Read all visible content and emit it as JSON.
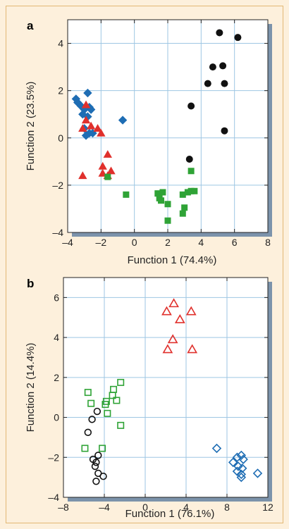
{
  "chart_data": [
    {
      "panel": "a",
      "type": "scatter",
      "xlabel": "Function 1 (74.4%)",
      "ylabel": "Function 2 (23.5%)",
      "xlim": [
        -4,
        8
      ],
      "ylim": [
        -4,
        5
      ],
      "xticks": [
        -4,
        -2,
        0,
        2,
        4,
        6,
        8
      ],
      "yticks": [
        -4,
        -2,
        0,
        2,
        4
      ],
      "xtick_labels": [
        "–4",
        "–2",
        "0",
        "2",
        "4",
        "6",
        "8"
      ],
      "ytick_labels": [
        "–4",
        "–2",
        "0",
        "2",
        "4"
      ],
      "grid": true,
      "series": [
        {
          "marker": "diamond",
          "filled": true,
          "color": "#1e6db4",
          "points": [
            [
              -3.5,
              1.65
            ],
            [
              -3.4,
              1.5
            ],
            [
              -2.8,
              1.9
            ],
            [
              -3.2,
              1.35
            ],
            [
              -3.0,
              1.2
            ],
            [
              -2.7,
              1.3
            ],
            [
              -2.6,
              1.2
            ],
            [
              -3.1,
              1.0
            ],
            [
              -2.8,
              0.9
            ],
            [
              -3.0,
              0.4
            ],
            [
              -2.7,
              0.2
            ],
            [
              -2.5,
              0.2
            ],
            [
              -2.9,
              0.1
            ],
            [
              -0.7,
              0.75
            ]
          ]
        },
        {
          "marker": "triangle",
          "filled": true,
          "color": "#e0302c",
          "points": [
            [
              -2.9,
              1.4
            ],
            [
              -2.9,
              0.75
            ],
            [
              -3.1,
              0.4
            ],
            [
              -2.6,
              0.5
            ],
            [
              -2.2,
              0.4
            ],
            [
              -2.0,
              0.2
            ],
            [
              -1.6,
              -0.7
            ],
            [
              -1.9,
              -1.2
            ],
            [
              -1.4,
              -1.4
            ],
            [
              -1.9,
              -1.5
            ],
            [
              -1.6,
              -1.6
            ],
            [
              -3.1,
              -1.6
            ]
          ]
        },
        {
          "marker": "square",
          "filled": true,
          "color": "#2fa336",
          "points": [
            [
              -1.6,
              -1.65
            ],
            [
              -0.5,
              -2.4
            ],
            [
              1.4,
              -2.35
            ],
            [
              1.7,
              -2.3
            ],
            [
              1.5,
              -2.55
            ],
            [
              1.6,
              -2.65
            ],
            [
              2.0,
              -2.8
            ],
            [
              2.9,
              -2.4
            ],
            [
              3.2,
              -2.3
            ],
            [
              3.4,
              -2.25
            ],
            [
              3.6,
              -2.25
            ],
            [
              3.4,
              -1.4
            ],
            [
              3.0,
              -2.95
            ],
            [
              2.9,
              -3.2
            ],
            [
              2.0,
              -3.5
            ]
          ]
        },
        {
          "marker": "circle",
          "filled": true,
          "color": "#111111",
          "points": [
            [
              5.1,
              4.45
            ],
            [
              6.2,
              4.25
            ],
            [
              4.7,
              3.0
            ],
            [
              5.3,
              3.05
            ],
            [
              4.4,
              2.3
            ],
            [
              5.4,
              2.3
            ],
            [
              3.4,
              1.35
            ],
            [
              5.4,
              0.3
            ],
            [
              3.3,
              -0.9
            ]
          ]
        }
      ]
    },
    {
      "panel": "b",
      "type": "scatter",
      "xlabel": "Function 1 (76.1%)",
      "ylabel": "Function 2 (14.4%)",
      "xlim": [
        -8,
        12
      ],
      "ylim": [
        -4,
        7
      ],
      "xticks": [
        -8,
        -4,
        0,
        4,
        8,
        12
      ],
      "yticks": [
        -4,
        -2,
        0,
        2,
        4,
        6
      ],
      "xtick_labels": [
        "–8",
        "–4",
        "0",
        "4",
        "8",
        "12"
      ],
      "ytick_labels": [
        "–4",
        "–2",
        "0",
        "2",
        "4",
        "6"
      ],
      "grid": true,
      "series": [
        {
          "marker": "triangle",
          "filled": false,
          "color": "#e0302c",
          "points": [
            [
              2.8,
              5.7
            ],
            [
              2.1,
              5.3
            ],
            [
              4.5,
              5.3
            ],
            [
              3.4,
              4.9
            ],
            [
              2.7,
              3.9
            ],
            [
              2.2,
              3.4
            ],
            [
              4.6,
              3.4
            ]
          ]
        },
        {
          "marker": "square",
          "filled": false,
          "color": "#2fa336",
          "points": [
            [
              -2.4,
              1.75
            ],
            [
              -5.6,
              1.25
            ],
            [
              -3.1,
              1.4
            ],
            [
              -3.2,
              1.1
            ],
            [
              -3.8,
              0.8
            ],
            [
              -2.8,
              0.85
            ],
            [
              -3.9,
              0.65
            ],
            [
              -5.3,
              0.7
            ],
            [
              -3.7,
              0.2
            ],
            [
              -2.4,
              -0.4
            ],
            [
              -5.9,
              -1.55
            ],
            [
              -4.2,
              -1.55
            ]
          ]
        },
        {
          "marker": "circle",
          "filled": false,
          "color": "#111111",
          "points": [
            [
              -4.7,
              0.3
            ],
            [
              -5.2,
              -0.1
            ],
            [
              -5.6,
              -0.75
            ],
            [
              -4.6,
              -1.9
            ],
            [
              -5.1,
              -2.1
            ],
            [
              -4.8,
              -2.25
            ],
            [
              -4.9,
              -2.45
            ],
            [
              -4.6,
              -2.8
            ],
            [
              -4.1,
              -2.95
            ],
            [
              -4.8,
              -3.2
            ]
          ]
        },
        {
          "marker": "diamond",
          "filled": false,
          "color": "#1e6db4",
          "points": [
            [
              7.0,
              -1.55
            ],
            [
              9.4,
              -1.9
            ],
            [
              9.0,
              -2.0
            ],
            [
              9.6,
              -2.1
            ],
            [
              8.6,
              -2.25
            ],
            [
              9.1,
              -2.45
            ],
            [
              9.5,
              -2.55
            ],
            [
              9.0,
              -2.7
            ],
            [
              9.4,
              -2.85
            ],
            [
              9.4,
              -3.0
            ],
            [
              11.0,
              -2.8
            ]
          ]
        }
      ]
    }
  ]
}
